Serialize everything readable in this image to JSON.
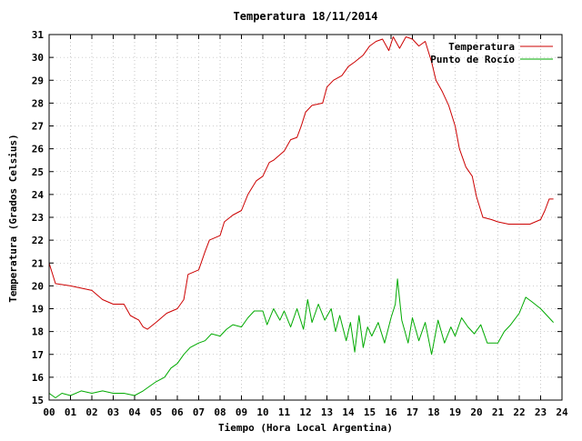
{
  "chart_data": {
    "type": "line",
    "title": "Temperatura 18/11/2014",
    "xlabel": "Tiempo (Hora Local Argentina)",
    "ylabel": "Temperatura (Grados Celsius)",
    "xlim": [
      0,
      24
    ],
    "ylim": [
      15,
      31
    ],
    "xticks": [
      "00",
      "01",
      "02",
      "03",
      "04",
      "05",
      "06",
      "07",
      "08",
      "09",
      "10",
      "11",
      "12",
      "13",
      "14",
      "15",
      "16",
      "17",
      "18",
      "19",
      "20",
      "21",
      "22",
      "23",
      "24"
    ],
    "yticks": [
      15,
      16,
      17,
      18,
      19,
      20,
      21,
      22,
      23,
      24,
      25,
      26,
      27,
      28,
      29,
      30,
      31
    ],
    "grid": true,
    "legend": "top-right",
    "series": [
      {
        "name": "Temperatura",
        "color": "#cc0000",
        "points": [
          [
            0.0,
            21.0
          ],
          [
            0.3,
            20.1
          ],
          [
            1.0,
            20.0
          ],
          [
            1.5,
            19.9
          ],
          [
            2.0,
            19.8
          ],
          [
            2.5,
            19.4
          ],
          [
            3.0,
            19.2
          ],
          [
            3.5,
            19.2
          ],
          [
            3.8,
            18.7
          ],
          [
            4.2,
            18.5
          ],
          [
            4.4,
            18.2
          ],
          [
            4.6,
            18.1
          ],
          [
            5.0,
            18.4
          ],
          [
            5.5,
            18.8
          ],
          [
            6.0,
            19.0
          ],
          [
            6.3,
            19.4
          ],
          [
            6.5,
            20.5
          ],
          [
            7.0,
            20.7
          ],
          [
            7.3,
            21.5
          ],
          [
            7.5,
            22.0
          ],
          [
            8.0,
            22.2
          ],
          [
            8.2,
            22.8
          ],
          [
            8.6,
            23.1
          ],
          [
            9.0,
            23.3
          ],
          [
            9.3,
            24.0
          ],
          [
            9.7,
            24.6
          ],
          [
            10.0,
            24.8
          ],
          [
            10.3,
            25.4
          ],
          [
            10.5,
            25.5
          ],
          [
            11.0,
            25.9
          ],
          [
            11.3,
            26.4
          ],
          [
            11.6,
            26.5
          ],
          [
            11.8,
            27.0
          ],
          [
            12.0,
            27.6
          ],
          [
            12.3,
            27.9
          ],
          [
            12.8,
            28.0
          ],
          [
            13.0,
            28.7
          ],
          [
            13.3,
            29.0
          ],
          [
            13.7,
            29.2
          ],
          [
            14.0,
            29.6
          ],
          [
            14.3,
            29.8
          ],
          [
            14.7,
            30.1
          ],
          [
            15.0,
            30.5
          ],
          [
            15.3,
            30.7
          ],
          [
            15.6,
            30.8
          ],
          [
            15.9,
            30.3
          ],
          [
            16.1,
            30.9
          ],
          [
            16.4,
            30.4
          ],
          [
            16.7,
            30.9
          ],
          [
            17.0,
            30.8
          ],
          [
            17.3,
            30.5
          ],
          [
            17.6,
            30.7
          ],
          [
            17.9,
            29.8
          ],
          [
            18.1,
            29.0
          ],
          [
            18.4,
            28.5
          ],
          [
            18.7,
            27.9
          ],
          [
            19.0,
            27.0
          ],
          [
            19.2,
            26.0
          ],
          [
            19.5,
            25.2
          ],
          [
            19.8,
            24.8
          ],
          [
            20.0,
            23.9
          ],
          [
            20.3,
            23.0
          ],
          [
            20.7,
            22.9
          ],
          [
            21.0,
            22.8
          ],
          [
            21.5,
            22.7
          ],
          [
            22.0,
            22.7
          ],
          [
            22.5,
            22.7
          ],
          [
            23.0,
            22.9
          ],
          [
            23.2,
            23.3
          ],
          [
            23.4,
            23.8
          ],
          [
            23.6,
            23.8
          ]
        ]
      },
      {
        "name": "Punto de Rocío",
        "color": "#00aa00",
        "points": [
          [
            0.0,
            15.3
          ],
          [
            0.3,
            15.1
          ],
          [
            0.6,
            15.3
          ],
          [
            1.0,
            15.2
          ],
          [
            1.5,
            15.4
          ],
          [
            2.0,
            15.3
          ],
          [
            2.5,
            15.4
          ],
          [
            3.0,
            15.3
          ],
          [
            3.5,
            15.3
          ],
          [
            4.0,
            15.2
          ],
          [
            4.4,
            15.4
          ],
          [
            4.7,
            15.6
          ],
          [
            5.0,
            15.8
          ],
          [
            5.4,
            16.0
          ],
          [
            5.7,
            16.4
          ],
          [
            6.0,
            16.6
          ],
          [
            6.3,
            17.0
          ],
          [
            6.6,
            17.3
          ],
          [
            7.0,
            17.5
          ],
          [
            7.3,
            17.6
          ],
          [
            7.6,
            17.9
          ],
          [
            8.0,
            17.8
          ],
          [
            8.3,
            18.1
          ],
          [
            8.6,
            18.3
          ],
          [
            9.0,
            18.2
          ],
          [
            9.3,
            18.6
          ],
          [
            9.6,
            18.9
          ],
          [
            10.0,
            18.9
          ],
          [
            10.2,
            18.3
          ],
          [
            10.5,
            19.0
          ],
          [
            10.8,
            18.5
          ],
          [
            11.0,
            18.9
          ],
          [
            11.3,
            18.2
          ],
          [
            11.6,
            19.0
          ],
          [
            11.9,
            18.1
          ],
          [
            12.1,
            19.4
          ],
          [
            12.3,
            18.4
          ],
          [
            12.6,
            19.2
          ],
          [
            12.9,
            18.5
          ],
          [
            13.2,
            19.0
          ],
          [
            13.4,
            18.0
          ],
          [
            13.6,
            18.7
          ],
          [
            13.9,
            17.6
          ],
          [
            14.1,
            18.4
          ],
          [
            14.3,
            17.1
          ],
          [
            14.5,
            18.7
          ],
          [
            14.7,
            17.3
          ],
          [
            14.9,
            18.2
          ],
          [
            15.1,
            17.8
          ],
          [
            15.4,
            18.4
          ],
          [
            15.7,
            17.5
          ],
          [
            16.0,
            18.6
          ],
          [
            16.2,
            19.2
          ],
          [
            16.3,
            20.3
          ],
          [
            16.5,
            18.5
          ],
          [
            16.8,
            17.5
          ],
          [
            17.0,
            18.6
          ],
          [
            17.3,
            17.6
          ],
          [
            17.6,
            18.4
          ],
          [
            17.9,
            17.0
          ],
          [
            18.2,
            18.5
          ],
          [
            18.5,
            17.5
          ],
          [
            18.8,
            18.2
          ],
          [
            19.0,
            17.8
          ],
          [
            19.3,
            18.6
          ],
          [
            19.6,
            18.2
          ],
          [
            19.9,
            17.9
          ],
          [
            20.2,
            18.3
          ],
          [
            20.5,
            17.5
          ],
          [
            21.0,
            17.5
          ],
          [
            21.3,
            18.0
          ],
          [
            21.6,
            18.3
          ],
          [
            22.0,
            18.8
          ],
          [
            22.3,
            19.5
          ],
          [
            22.6,
            19.3
          ],
          [
            23.0,
            19.0
          ],
          [
            23.3,
            18.7
          ],
          [
            23.6,
            18.4
          ]
        ]
      }
    ]
  }
}
